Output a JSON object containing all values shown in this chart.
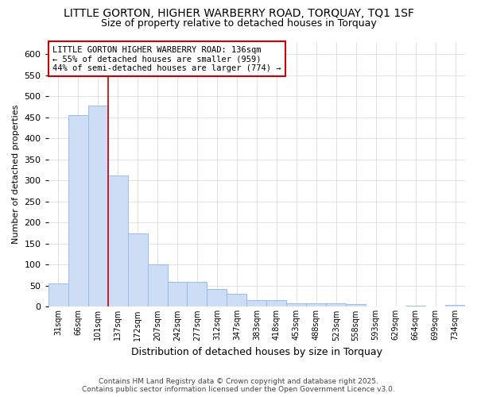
{
  "title_line1": "LITTLE GORTON, HIGHER WARBERRY ROAD, TORQUAY, TQ1 1SF",
  "title_line2": "Size of property relative to detached houses in Torquay",
  "xlabel": "Distribution of detached houses by size in Torquay",
  "ylabel": "Number of detached properties",
  "categories": [
    "31sqm",
    "66sqm",
    "101sqm",
    "137sqm",
    "172sqm",
    "207sqm",
    "242sqm",
    "277sqm",
    "312sqm",
    "347sqm",
    "383sqm",
    "418sqm",
    "453sqm",
    "488sqm",
    "523sqm",
    "558sqm",
    "593sqm",
    "629sqm",
    "664sqm",
    "699sqm",
    "734sqm"
  ],
  "values": [
    55,
    456,
    478,
    312,
    175,
    100,
    59,
    59,
    43,
    30,
    15,
    15,
    9,
    9,
    9,
    7,
    0,
    0,
    2,
    0,
    4
  ],
  "bar_color": "#ccddf5",
  "bar_edge_color": "#99bbee",
  "red_line_index": 2.5,
  "annotation_text": "LITTLE GORTON HIGHER WARBERRY ROAD: 136sqm\n← 55% of detached houses are smaller (959)\n44% of semi-detached houses are larger (774) →",
  "annotation_box_color": "#ffffff",
  "annotation_box_edge": "#cc0000",
  "ylim": [
    0,
    630
  ],
  "yticks": [
    0,
    50,
    100,
    150,
    200,
    250,
    300,
    350,
    400,
    450,
    500,
    550,
    600
  ],
  "footer_line1": "Contains HM Land Registry data © Crown copyright and database right 2025.",
  "footer_line2": "Contains public sector information licensed under the Open Government Licence v3.0.",
  "bg_color": "#ffffff",
  "grid_color": "#dddddd"
}
